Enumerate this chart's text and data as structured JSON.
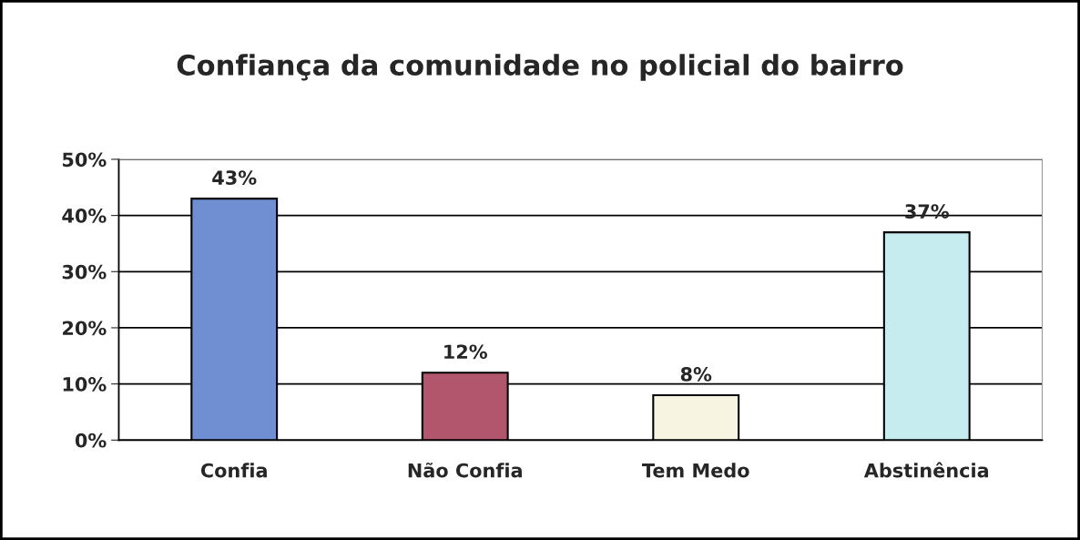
{
  "chart_data": {
    "type": "bar",
    "title": "Confiança da comunidade no policial do bairro",
    "categories": [
      "Confia",
      "Não Confia",
      "Tem Medo",
      "Abstinência"
    ],
    "values": [
      43,
      12,
      8,
      37
    ],
    "colors": [
      "#6f8fd2",
      "#b2566e",
      "#f7f5e2",
      "#c6ecf0"
    ],
    "value_labels": [
      "43%",
      "12%",
      "8%",
      "37%"
    ],
    "ylim": [
      0,
      50
    ],
    "yticks": [
      {
        "value": 0,
        "label": "0%"
      },
      {
        "value": 10,
        "label": "10%"
      },
      {
        "value": 20,
        "label": "20%"
      },
      {
        "value": 30,
        "label": "30%"
      },
      {
        "value": 40,
        "label": "40%"
      },
      {
        "value": 50,
        "label": "50%"
      }
    ],
    "grid": "y",
    "legend": false
  }
}
